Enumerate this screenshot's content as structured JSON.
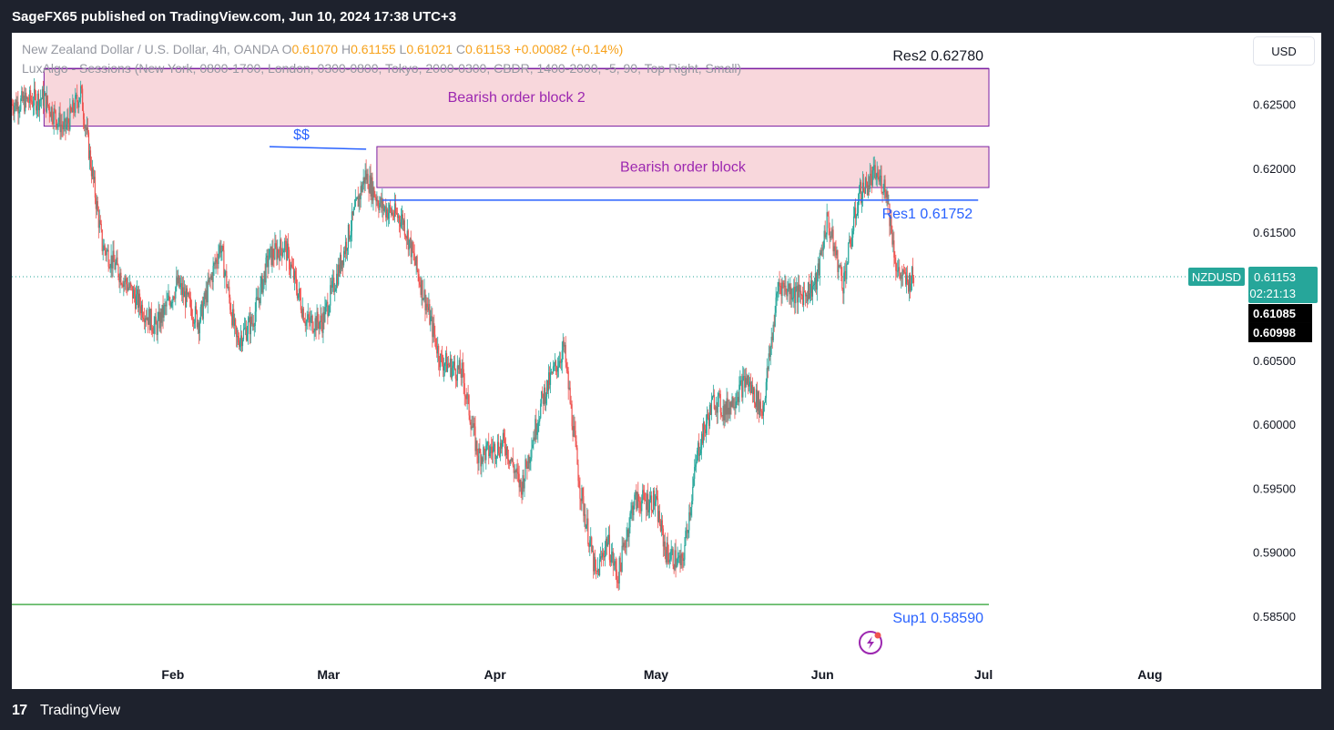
{
  "header": {
    "publisher": "SageFX65 published on TradingView.com, Jun 10, 2024 17:38 UTC+3"
  },
  "legend": {
    "symbol_line": "New Zealand Dollar / U.S. Dollar, 4h, OANDA",
    "o_label": "O",
    "o_value": "0.61070",
    "h_label": "H",
    "h_value": "0.61155",
    "l_label": "L",
    "l_value": "0.61021",
    "c_label": "C",
    "c_value": "0.61153",
    "change": "+0.00082 (+0.14%)",
    "indicator_line": "LuxAlgo - Sessions (New York, 0800-1700, London, 0300-0800, Tokyo, 2000-0300, CBDR, 1400-2000, -5, 90, Top Right, Small)"
  },
  "currency_button": {
    "label": "USD"
  },
  "footer": {
    "logo_glyph": "17",
    "brand": "TradingView"
  },
  "colors": {
    "up": "#26a69a",
    "down": "#ef5350",
    "order_block_fill": "#f8d7dc",
    "order_block_border": "#7b1fa2",
    "order_block_text": "#9c27b0",
    "res_line": "#2962ff",
    "sup_line": "#4caf50",
    "price_tag": "#26a69a"
  },
  "chart_data": {
    "type": "candlestick",
    "symbol": "NZDUSD",
    "timeframe": "4h",
    "y_axis": {
      "ticks": [
        0.585,
        0.59,
        0.595,
        0.6,
        0.605,
        0.615,
        0.62,
        0.625
      ],
      "tick_labels": [
        "0.58500",
        "0.59000",
        "0.59500",
        "0.60000",
        "0.60500",
        "0.61500",
        "0.62000",
        "0.62500"
      ],
      "range": [
        0.5815,
        0.6306
      ]
    },
    "x_axis": {
      "labels": [
        {
          "text": "Feb",
          "date": "2024-02-01"
        },
        {
          "text": "Mar",
          "date": "2024-03-01"
        },
        {
          "text": "Apr",
          "date": "2024-04-01"
        },
        {
          "text": "May",
          "date": "2024-05-01"
        },
        {
          "text": "Jun",
          "date": "2024-06-01"
        },
        {
          "text": "Jul",
          "date": "2024-07-01"
        },
        {
          "text": "Aug",
          "date": "2024-08-01"
        }
      ],
      "range": [
        "2024-01-02",
        "2024-08-19"
      ]
    },
    "price_path": [
      {
        "date": "2024-01-02",
        "price": 0.625
      },
      {
        "date": "2024-01-08",
        "price": 0.6255
      },
      {
        "date": "2024-01-12",
        "price": 0.623
      },
      {
        "date": "2024-01-15",
        "price": 0.626
      },
      {
        "date": "2024-01-19",
        "price": 0.614
      },
      {
        "date": "2024-01-25",
        "price": 0.61
      },
      {
        "date": "2024-01-29",
        "price": 0.6075
      },
      {
        "date": "2024-02-02",
        "price": 0.611
      },
      {
        "date": "2024-02-06",
        "price": 0.608
      },
      {
        "date": "2024-02-10",
        "price": 0.614
      },
      {
        "date": "2024-02-13",
        "price": 0.6065
      },
      {
        "date": "2024-02-16",
        "price": 0.608
      },
      {
        "date": "2024-02-19",
        "price": 0.613
      },
      {
        "date": "2024-02-22",
        "price": 0.614
      },
      {
        "date": "2024-02-26",
        "price": 0.608
      },
      {
        "date": "2024-02-29",
        "price": 0.608
      },
      {
        "date": "2024-03-03",
        "price": 0.612
      },
      {
        "date": "2024-03-08",
        "price": 0.6195
      },
      {
        "date": "2024-03-11",
        "price": 0.617
      },
      {
        "date": "2024-03-15",
        "price": 0.616
      },
      {
        "date": "2024-03-19",
        "price": 0.61
      },
      {
        "date": "2024-03-22",
        "price": 0.605
      },
      {
        "date": "2024-03-26",
        "price": 0.604
      },
      {
        "date": "2024-03-29",
        "price": 0.5975
      },
      {
        "date": "2024-04-03",
        "price": 0.5985
      },
      {
        "date": "2024-04-06",
        "price": 0.595
      },
      {
        "date": "2024-04-10",
        "price": 0.602
      },
      {
        "date": "2024-04-14",
        "price": 0.606
      },
      {
        "date": "2024-04-17",
        "price": 0.595
      },
      {
        "date": "2024-04-20",
        "price": 0.588
      },
      {
        "date": "2024-04-22",
        "price": 0.591
      },
      {
        "date": "2024-04-24",
        "price": 0.588
      },
      {
        "date": "2024-04-27",
        "price": 0.594
      },
      {
        "date": "2024-05-01",
        "price": 0.594
      },
      {
        "date": "2024-05-03",
        "price": 0.59
      },
      {
        "date": "2024-05-06",
        "price": 0.589
      },
      {
        "date": "2024-05-09",
        "price": 0.598
      },
      {
        "date": "2024-05-12",
        "price": 0.602
      },
      {
        "date": "2024-05-14",
        "price": 0.601
      },
      {
        "date": "2024-05-18",
        "price": 0.6035
      },
      {
        "date": "2024-05-21",
        "price": 0.601
      },
      {
        "date": "2024-05-24",
        "price": 0.611
      },
      {
        "date": "2024-05-28",
        "price": 0.61
      },
      {
        "date": "2024-05-31",
        "price": 0.611
      },
      {
        "date": "2024-06-02",
        "price": 0.616
      },
      {
        "date": "2024-06-05",
        "price": 0.611
      },
      {
        "date": "2024-06-08",
        "price": 0.618
      },
      {
        "date": "2024-06-11",
        "price": 0.6195
      },
      {
        "date": "2024-06-13",
        "price": 0.6185
      },
      {
        "date": "2024-06-15",
        "price": 0.612
      },
      {
        "date": "2024-06-17",
        "price": 0.611
      },
      {
        "date": "2024-06-18",
        "price": 0.6115
      }
    ],
    "zones": [
      {
        "label": "Bearish order block 2",
        "start": "2024-01-08",
        "end": "2024-07-02",
        "low": 0.6233,
        "high": 0.6278
      },
      {
        "label": "Bearish order block",
        "start": "2024-03-10",
        "end": "2024-07-02",
        "low": 0.6185,
        "high": 0.6217
      }
    ],
    "levels": [
      {
        "name": "Res2",
        "value_label": "0.62780",
        "value": 0.6278,
        "start": "2024-01-08",
        "end": "2024-07-02",
        "color": "#7b1fa2"
      },
      {
        "name": "Res1",
        "value_label": "0.61752",
        "value": 0.61752,
        "start": "2024-03-11",
        "end": "2024-06-30",
        "color": "#2962ff"
      },
      {
        "name": "Sup1",
        "value_label": "0.58590",
        "value": 0.5859,
        "start": "2024-01-02",
        "end": "2024-07-02",
        "color": "#4caf50"
      }
    ],
    "liquidity_line": {
      "label": "$$",
      "start": "2024-02-19",
      "end": "2024-03-08",
      "y1": 0.6217,
      "y2": 0.6215
    },
    "last_price": {
      "symbol": "NZDUSD",
      "price": "0.61153",
      "value": 0.61153,
      "countdown": "02:21:13"
    },
    "other_tags": [
      {
        "label": "0.61085",
        "value": 0.61085
      },
      {
        "label": "0.60998",
        "value": 0.60998
      }
    ]
  }
}
